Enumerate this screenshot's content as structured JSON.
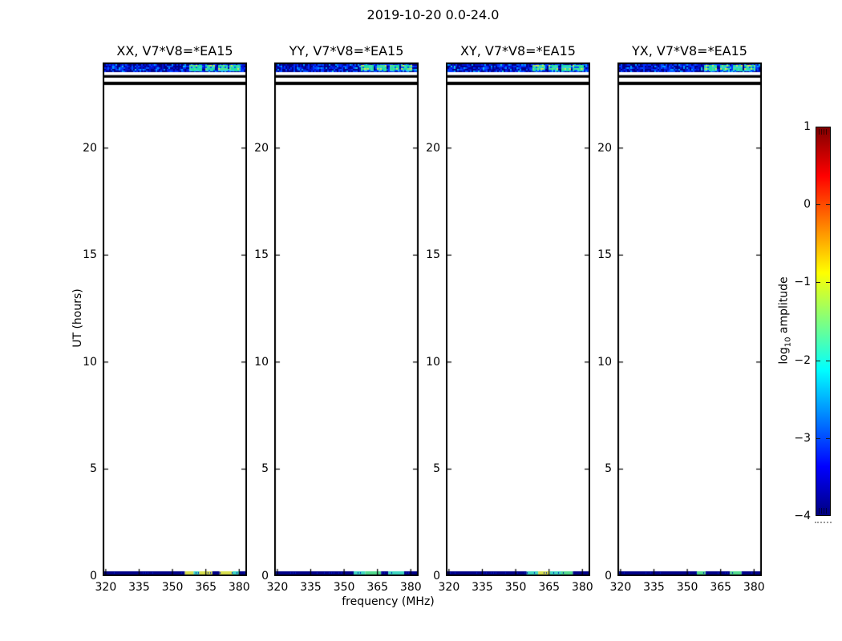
{
  "figure": {
    "background": "#ffffff"
  },
  "chart_data": {
    "type": "heatmap",
    "title": "2019-10-20 0.0-24.0",
    "xlabel": "frequency (MHz)",
    "ylabel": "UT (hours)",
    "xticks": [
      320,
      335,
      350,
      365,
      380
    ],
    "yticks": [
      0,
      5,
      10,
      15,
      20
    ],
    "xlim": [
      318.6,
      383.5
    ],
    "ylim": [
      0,
      24
    ],
    "grid": false,
    "legend": null,
    "panels": [
      {
        "title": "XX, V7*V8=*EA15"
      },
      {
        "title": "YY, V7*V8=*EA15"
      },
      {
        "title": "XY, V7*V8=*EA15"
      },
      {
        "title": "YX, V7*V8=*EA15"
      }
    ],
    "features": {
      "description": "Waterfall dynamic spectra: blank except a blue speckled band near UT 23.5-24.0 containing four bright cyan/green/yellow RFI blocks in the upper frequencies, two full-width black flagged rows near UT 23.0-23.4, and a thin low-amplitude row at UT 0 (dark blue at low frequencies, yellow/cyan patches above ~357 MHz).",
      "top_band_hours": [
        23.55,
        23.93
      ],
      "flagged_rows_hours": [
        [
          23.29,
          23.41
        ],
        [
          22.95,
          23.1
        ]
      ],
      "bottom_band_hours": [
        0,
        0.12
      ],
      "bright_block_freq_fractions": [
        [
          0.6,
          0.69
        ],
        [
          0.71,
          0.78
        ],
        [
          0.8,
          0.86
        ],
        [
          0.88,
          0.95
        ]
      ],
      "speckle_palette": [
        "#000088",
        "#0012d0",
        "#0030ff",
        "#0055ff",
        "#00a0ff",
        "#19c8e8"
      ],
      "block_palette": [
        "#23dfa5",
        "#4ce88e",
        "#86e472",
        "#d8e84e",
        "#35cfe2"
      ],
      "bottom_segments": [
        [
          [
            0,
            0.57,
            "#000088"
          ],
          [
            0.57,
            0.63,
            "#d8e04e"
          ],
          [
            0.63,
            0.67,
            "#3fd8c2"
          ],
          [
            0.67,
            0.76,
            "#d8e04e"
          ],
          [
            0.76,
            0.81,
            "#000088"
          ],
          [
            0.81,
            0.9,
            "#d8e04e"
          ],
          [
            0.9,
            0.95,
            "#3fd8c2"
          ],
          [
            0.95,
            1,
            "#000088"
          ]
        ],
        [
          [
            0,
            0.55,
            "#000088"
          ],
          [
            0.55,
            0.63,
            "#3fd8c2"
          ],
          [
            0.63,
            0.74,
            "#52dc8e"
          ],
          [
            0.74,
            0.79,
            "#000088"
          ],
          [
            0.79,
            0.9,
            "#3fd8c2"
          ],
          [
            0.9,
            1,
            "#000088"
          ]
        ],
        [
          [
            0,
            0.56,
            "#000088"
          ],
          [
            0.56,
            0.64,
            "#3fd8c2"
          ],
          [
            0.64,
            0.72,
            "#d8e04e"
          ],
          [
            0.72,
            0.8,
            "#3fd8c2"
          ],
          [
            0.8,
            0.88,
            "#52dc8e"
          ],
          [
            0.88,
            1,
            "#000088"
          ]
        ],
        [
          [
            0,
            0.55,
            "#000088"
          ],
          [
            0.55,
            0.61,
            "#52dc8e"
          ],
          [
            0.61,
            0.78,
            "#000088"
          ],
          [
            0.78,
            0.86,
            "#52dc8e"
          ],
          [
            0.86,
            1,
            "#000088"
          ]
        ]
      ],
      "seeds": [
        101,
        202,
        303,
        404
      ]
    },
    "colorbar": {
      "label_prefix": "log",
      "label_sub": "10",
      "label_suffix": " amplitude",
      "ticks": [
        1,
        0,
        -1,
        -2,
        -3,
        -4
      ],
      "range": [
        -4,
        1
      ],
      "colormap": "jet",
      "gradient_top_to_bottom": [
        {
          "pos": 0,
          "color": "#7f0000"
        },
        {
          "pos": 12.5,
          "color": "#ff0000"
        },
        {
          "pos": 37.5,
          "color": "#ffff00"
        },
        {
          "pos": 62.5,
          "color": "#00ffff"
        },
        {
          "pos": 87.5,
          "color": "#0000ff"
        },
        {
          "pos": 100,
          "color": "#00007f"
        }
      ]
    }
  }
}
